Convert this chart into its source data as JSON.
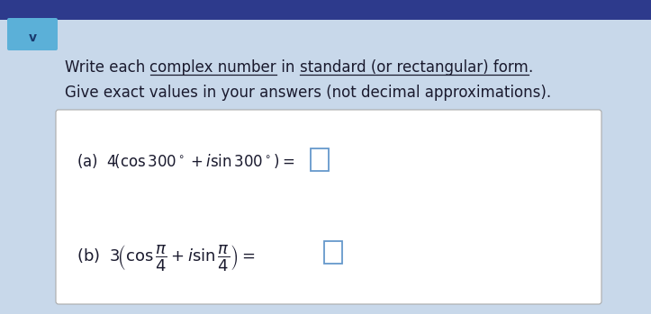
{
  "bg_top_color": "#2d3a8c",
  "bg_main_color": "#c8d8ea",
  "box_facecolor": "#f0f4f8",
  "box_border_color": "#aaaaaa",
  "text_color": "#1a1a2e",
  "chevron_bg": "#5bb0d8",
  "chevron_text_color": "#1a3a6e",
  "line1_parts": [
    [
      "Write each ",
      false
    ],
    [
      "complex number",
      true
    ],
    [
      " in ",
      false
    ],
    [
      "standard (or rectangular) form",
      true
    ],
    [
      ".",
      false
    ]
  ],
  "line2": "Give exact values in your answers (not decimal approximations).",
  "ans_box_color": "#6699cc",
  "fontsize_title": 12,
  "fontsize_eq_a": 12,
  "fontsize_eq_b": 13
}
